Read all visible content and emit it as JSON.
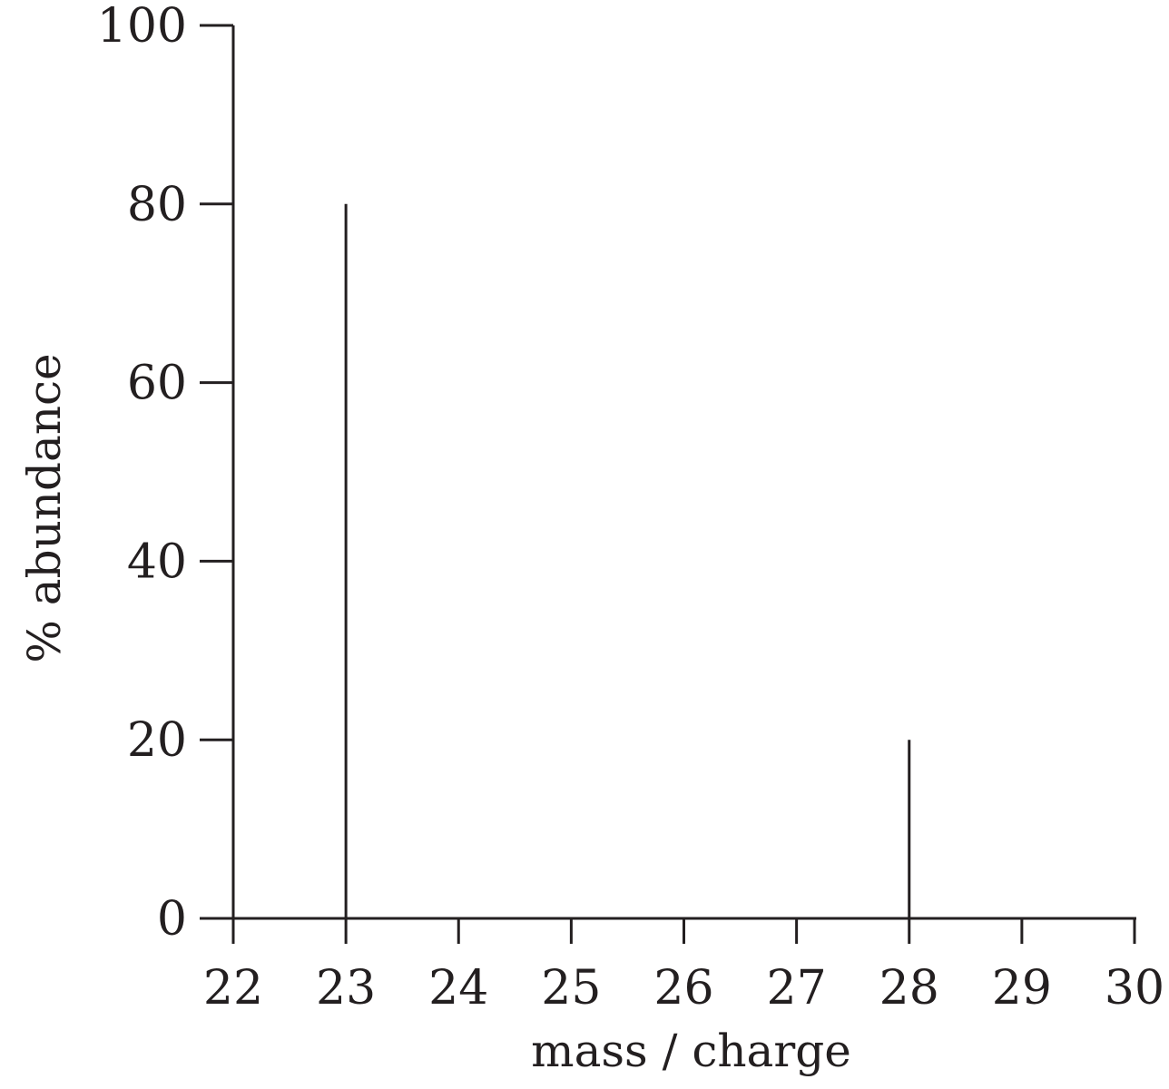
{
  "chart_data": {
    "type": "bar",
    "title": "",
    "xlabel": "mass / charge",
    "ylabel": "% abundance",
    "xlim": [
      22,
      30
    ],
    "ylim": [
      0,
      100
    ],
    "x_ticks": [
      22,
      23,
      24,
      25,
      26,
      27,
      28,
      29,
      30
    ],
    "y_ticks": [
      0,
      20,
      40,
      60,
      80,
      100
    ],
    "grid": false,
    "series": [
      {
        "points": [
          {
            "x": 23,
            "y": 80
          },
          {
            "x": 28,
            "y": 20
          }
        ]
      }
    ],
    "colors": {
      "ink": "#231f20",
      "background": "#ffffff"
    }
  }
}
